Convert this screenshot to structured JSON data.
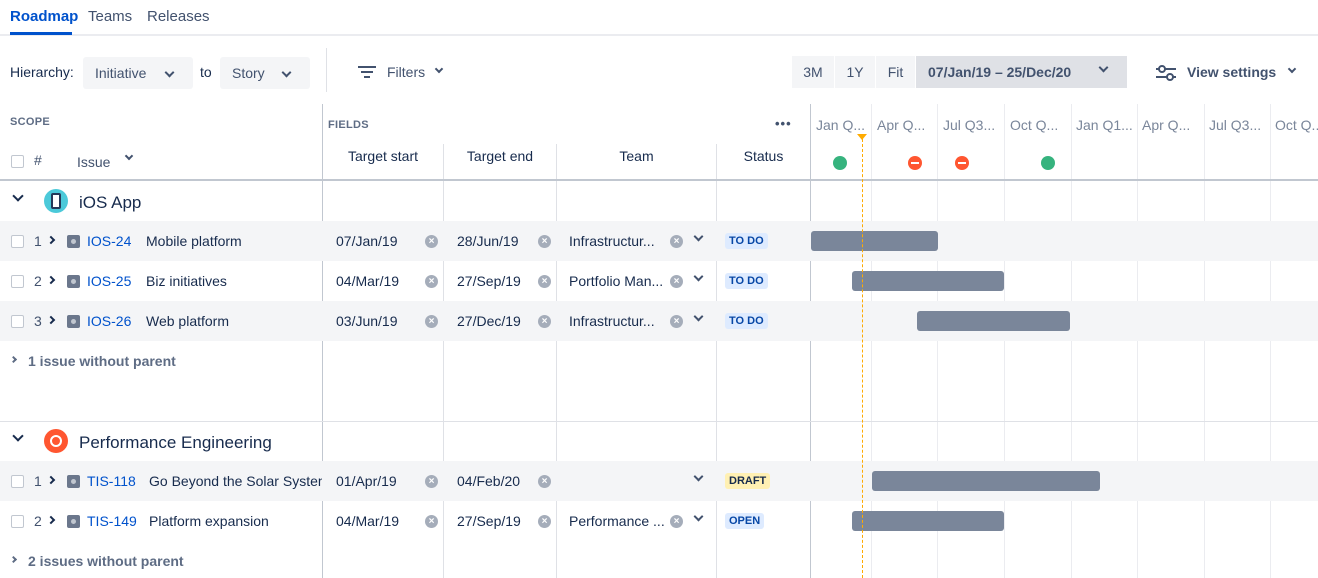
{
  "tabs": [
    {
      "label": "Roadmap",
      "active": true
    },
    {
      "label": "Teams",
      "active": false
    },
    {
      "label": "Releases",
      "active": false
    }
  ],
  "toolbar": {
    "hierarchy_label": "Hierarchy:",
    "hierarchy_from": "Initiative",
    "to_label": "to",
    "hierarchy_to": "Story",
    "filters_label": "Filters",
    "zoom": [
      "3M",
      "1Y",
      "Fit"
    ],
    "date_range": "07/Jan/19 – 25/Dec/20",
    "view_settings": "View settings"
  },
  "headers": {
    "scope": "SCOPE",
    "fields": "FIELDS",
    "more": "•••",
    "hash": "#",
    "issue": "Issue",
    "target_start": "Target start",
    "target_end": "Target end",
    "team": "Team",
    "status": "Status"
  },
  "timeline": {
    "quarters": [
      "Jan Q...",
      "Apr Q...",
      "Jul Q3...",
      "Oct Q...",
      "Jan Q1...",
      "Apr Q...",
      "Jul Q3...",
      "Oct Q..."
    ],
    "markers": [
      "ok",
      "warn",
      "warn",
      "ok"
    ]
  },
  "groups": [
    {
      "name": "iOS App",
      "icon": "ios-app-avatar-icon",
      "issues": [
        {
          "n": "1",
          "key": "IOS-24",
          "title": "Mobile platform",
          "start": "07/Jan/19",
          "end": "28/Jun/19",
          "team": "Infrastructur...",
          "status": "TO DO",
          "bar_start": 0.0,
          "bar_end": 0.25
        },
        {
          "n": "2",
          "key": "IOS-25",
          "title": "Biz initiatives",
          "start": "04/Mar/19",
          "end": "27/Sep/19",
          "team": "Portfolio Man...",
          "status": "TO DO",
          "bar_start": 0.08,
          "bar_end": 0.38
        },
        {
          "n": "3",
          "key": "IOS-26",
          "title": "Web platform",
          "start": "03/Jun/19",
          "end": "27/Dec/19",
          "team": "Infrastructur...",
          "status": "TO DO",
          "bar_start": 0.21,
          "bar_end": 0.51
        }
      ],
      "without_parent": "1 issue without parent"
    },
    {
      "name": "Performance Engineering",
      "icon": "performance-avatar-icon",
      "issues": [
        {
          "n": "1",
          "key": "TIS-118",
          "title": "Go Beyond the Solar System",
          "start": "01/Apr/19",
          "end": "04/Feb/20",
          "team": "",
          "status": "DRAFT",
          "bar_start": 0.12,
          "bar_end": 0.57
        },
        {
          "n": "2",
          "key": "TIS-149",
          "title": "Platform expansion",
          "start": "04/Mar/19",
          "end": "27/Sep/19",
          "team": "Performance ...",
          "status": "OPEN",
          "bar_start": 0.08,
          "bar_end": 0.38
        }
      ],
      "without_parent": "2 issues without parent"
    }
  ],
  "colors": {
    "todo_bg": "#deebff",
    "todo_fg": "#0747a6",
    "draft_bg": "#fff0b3",
    "draft_fg": "#172b4d",
    "open_bg": "#deebff",
    "open_fg": "#0747a6"
  }
}
